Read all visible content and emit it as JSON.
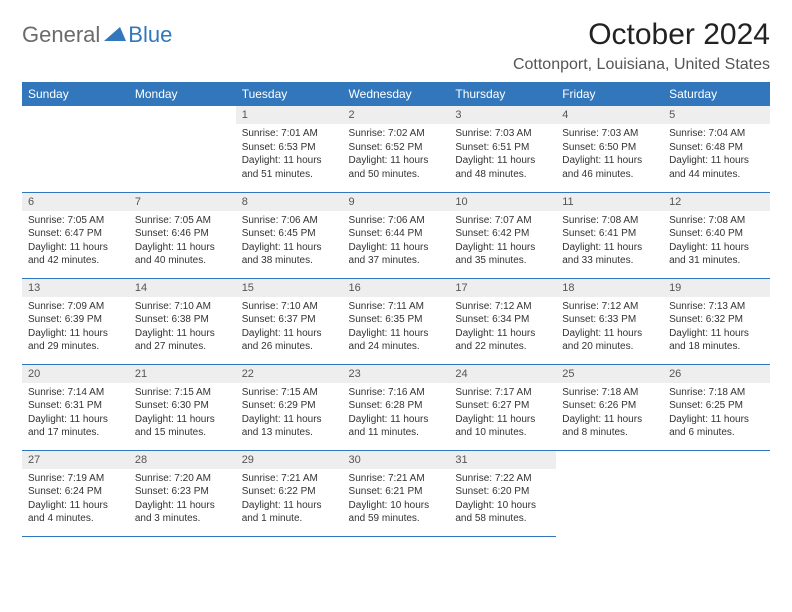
{
  "brand": {
    "part1": "General",
    "part2": "Blue"
  },
  "title": "October 2024",
  "location": "Cottonport, Louisiana, United States",
  "colors": {
    "header_bg": "#3277bc",
    "header_text": "#ffffff",
    "daynum_bg": "#eeeeee",
    "body_text": "#333333",
    "border": "#3277bc",
    "page_bg": "#ffffff"
  },
  "typography": {
    "title_fontsize": 30,
    "location_fontsize": 16,
    "daynum_fontsize": 11,
    "body_fontsize": 10,
    "header_fontsize": 12
  },
  "day_headers": [
    "Sunday",
    "Monday",
    "Tuesday",
    "Wednesday",
    "Thursday",
    "Friday",
    "Saturday"
  ],
  "first_weekday_index": 2,
  "days": [
    {
      "n": 1,
      "sunrise": "7:01 AM",
      "sunset": "6:53 PM",
      "daylight": "11 hours and 51 minutes."
    },
    {
      "n": 2,
      "sunrise": "7:02 AM",
      "sunset": "6:52 PM",
      "daylight": "11 hours and 50 minutes."
    },
    {
      "n": 3,
      "sunrise": "7:03 AM",
      "sunset": "6:51 PM",
      "daylight": "11 hours and 48 minutes."
    },
    {
      "n": 4,
      "sunrise": "7:03 AM",
      "sunset": "6:50 PM",
      "daylight": "11 hours and 46 minutes."
    },
    {
      "n": 5,
      "sunrise": "7:04 AM",
      "sunset": "6:48 PM",
      "daylight": "11 hours and 44 minutes."
    },
    {
      "n": 6,
      "sunrise": "7:05 AM",
      "sunset": "6:47 PM",
      "daylight": "11 hours and 42 minutes."
    },
    {
      "n": 7,
      "sunrise": "7:05 AM",
      "sunset": "6:46 PM",
      "daylight": "11 hours and 40 minutes."
    },
    {
      "n": 8,
      "sunrise": "7:06 AM",
      "sunset": "6:45 PM",
      "daylight": "11 hours and 38 minutes."
    },
    {
      "n": 9,
      "sunrise": "7:06 AM",
      "sunset": "6:44 PM",
      "daylight": "11 hours and 37 minutes."
    },
    {
      "n": 10,
      "sunrise": "7:07 AM",
      "sunset": "6:42 PM",
      "daylight": "11 hours and 35 minutes."
    },
    {
      "n": 11,
      "sunrise": "7:08 AM",
      "sunset": "6:41 PM",
      "daylight": "11 hours and 33 minutes."
    },
    {
      "n": 12,
      "sunrise": "7:08 AM",
      "sunset": "6:40 PM",
      "daylight": "11 hours and 31 minutes."
    },
    {
      "n": 13,
      "sunrise": "7:09 AM",
      "sunset": "6:39 PM",
      "daylight": "11 hours and 29 minutes."
    },
    {
      "n": 14,
      "sunrise": "7:10 AM",
      "sunset": "6:38 PM",
      "daylight": "11 hours and 27 minutes."
    },
    {
      "n": 15,
      "sunrise": "7:10 AM",
      "sunset": "6:37 PM",
      "daylight": "11 hours and 26 minutes."
    },
    {
      "n": 16,
      "sunrise": "7:11 AM",
      "sunset": "6:35 PM",
      "daylight": "11 hours and 24 minutes."
    },
    {
      "n": 17,
      "sunrise": "7:12 AM",
      "sunset": "6:34 PM",
      "daylight": "11 hours and 22 minutes."
    },
    {
      "n": 18,
      "sunrise": "7:12 AM",
      "sunset": "6:33 PM",
      "daylight": "11 hours and 20 minutes."
    },
    {
      "n": 19,
      "sunrise": "7:13 AM",
      "sunset": "6:32 PM",
      "daylight": "11 hours and 18 minutes."
    },
    {
      "n": 20,
      "sunrise": "7:14 AM",
      "sunset": "6:31 PM",
      "daylight": "11 hours and 17 minutes."
    },
    {
      "n": 21,
      "sunrise": "7:15 AM",
      "sunset": "6:30 PM",
      "daylight": "11 hours and 15 minutes."
    },
    {
      "n": 22,
      "sunrise": "7:15 AM",
      "sunset": "6:29 PM",
      "daylight": "11 hours and 13 minutes."
    },
    {
      "n": 23,
      "sunrise": "7:16 AM",
      "sunset": "6:28 PM",
      "daylight": "11 hours and 11 minutes."
    },
    {
      "n": 24,
      "sunrise": "7:17 AM",
      "sunset": "6:27 PM",
      "daylight": "11 hours and 10 minutes."
    },
    {
      "n": 25,
      "sunrise": "7:18 AM",
      "sunset": "6:26 PM",
      "daylight": "11 hours and 8 minutes."
    },
    {
      "n": 26,
      "sunrise": "7:18 AM",
      "sunset": "6:25 PM",
      "daylight": "11 hours and 6 minutes."
    },
    {
      "n": 27,
      "sunrise": "7:19 AM",
      "sunset": "6:24 PM",
      "daylight": "11 hours and 4 minutes."
    },
    {
      "n": 28,
      "sunrise": "7:20 AM",
      "sunset": "6:23 PM",
      "daylight": "11 hours and 3 minutes."
    },
    {
      "n": 29,
      "sunrise": "7:21 AM",
      "sunset": "6:22 PM",
      "daylight": "11 hours and 1 minute."
    },
    {
      "n": 30,
      "sunrise": "7:21 AM",
      "sunset": "6:21 PM",
      "daylight": "10 hours and 59 minutes."
    },
    {
      "n": 31,
      "sunrise": "7:22 AM",
      "sunset": "6:20 PM",
      "daylight": "10 hours and 58 minutes."
    }
  ],
  "labels": {
    "sunrise": "Sunrise:",
    "sunset": "Sunset:",
    "daylight": "Daylight:"
  }
}
